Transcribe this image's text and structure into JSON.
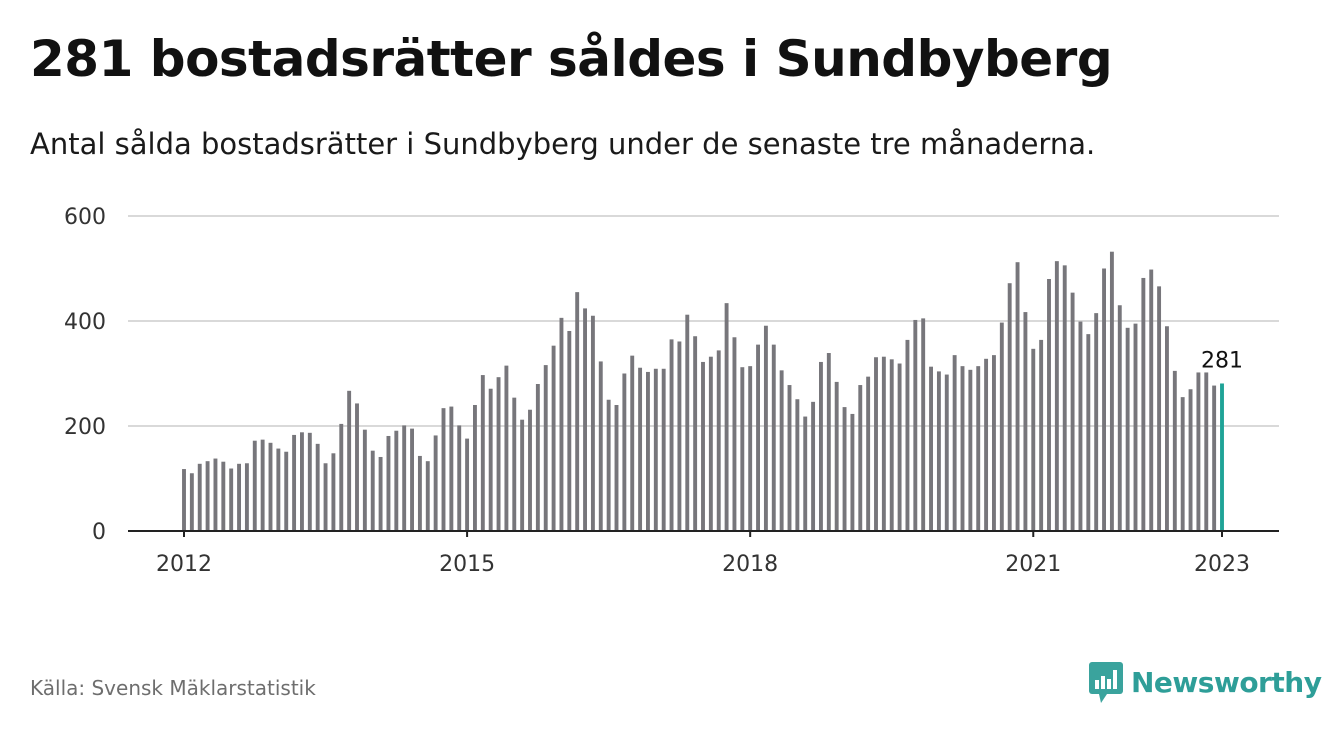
{
  "header": {
    "title": "281 bostadsrätter såldes i Sundbyberg",
    "subtitle": "Antal sålda bostadsrätter i Sundbyberg under de senaste tre månaderna."
  },
  "footer": {
    "source": "Källa: Svensk Mäklarstatistik",
    "brand": "Newsworthy",
    "brand_icon": "newsworthy-logo-icon"
  },
  "colors": {
    "bar": "#77767b",
    "highlight": "#1fa397",
    "grid": "#d9d9d9",
    "axis": "#222222",
    "brand": "#2e9e98"
  },
  "chart_data": {
    "type": "bar",
    "title": "281 bostadsrätter såldes i Sundbyberg",
    "subtitle": "Antal sålda bostadsrätter i Sundbyberg under de senaste tre månaderna.",
    "xlabel": "",
    "ylabel": "",
    "ylim": [
      0,
      600
    ],
    "yticks": [
      0,
      200,
      400,
      600
    ],
    "yticklabels": [
      "0",
      "200",
      "400",
      "600"
    ],
    "xticklabels": [
      "2012",
      "2015",
      "2018",
      "2021",
      "2023"
    ],
    "x_start": "2012-01",
    "x_end": "2023-01",
    "grid": "horizontal",
    "legend": "none",
    "highlight_label": "281",
    "series": [
      {
        "values": [
          118,
          110,
          128,
          133,
          138,
          132,
          119,
          128,
          129,
          172,
          174,
          168,
          157,
          151,
          183,
          188,
          187,
          166,
          129,
          148,
          204,
          267,
          243,
          193,
          153,
          141,
          181,
          191,
          201,
          195,
          143,
          133,
          182,
          234,
          237,
          201,
          176,
          240,
          297,
          271,
          293,
          315,
          254,
          212,
          231,
          280,
          316,
          353,
          406,
          381,
          455,
          424,
          410,
          323,
          250,
          240,
          300,
          334,
          311,
          303,
          309,
          309,
          365,
          361,
          412,
          371,
          322,
          332,
          344,
          434,
          369,
          312,
          314,
          355,
          391,
          355,
          306,
          278,
          251,
          218,
          246,
          322,
          339,
          284,
          236,
          223,
          278,
          294,
          331,
          332,
          327,
          319,
          364,
          402,
          405,
          313,
          304,
          298,
          335,
          314,
          307,
          314,
          328,
          335,
          397,
          472,
          512,
          417,
          347,
          364,
          480,
          514,
          506,
          454,
          399,
          375,
          415,
          500,
          532,
          430,
          387,
          395,
          482,
          498,
          466,
          390,
          305,
          255,
          270,
          302,
          302,
          277,
          281
        ]
      }
    ]
  }
}
